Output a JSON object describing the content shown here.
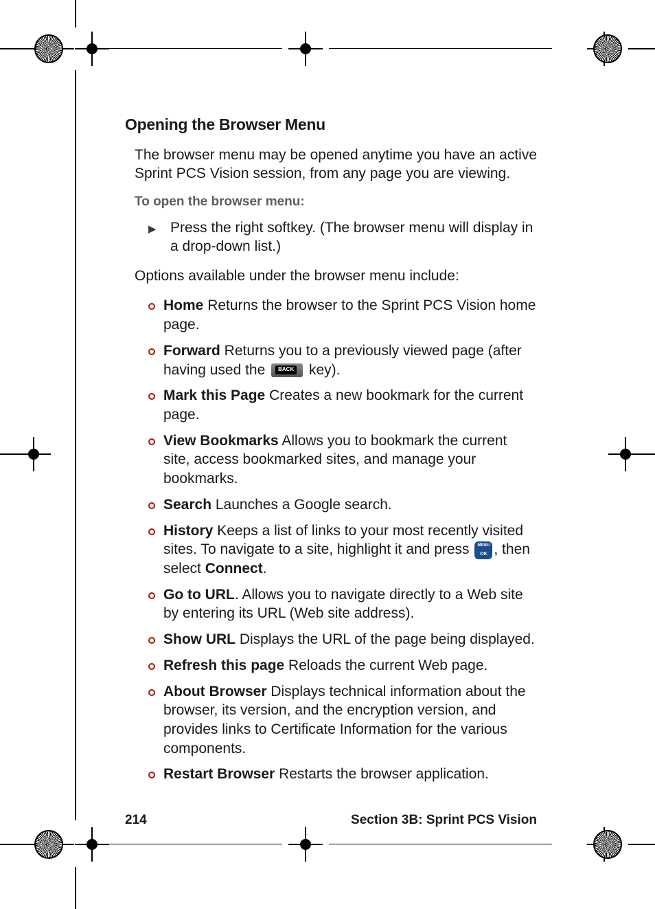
{
  "heading": "Opening the Browser Menu",
  "intro": "The browser menu may be opened anytime you have an active Sprint PCS Vision session, from any page you are viewing.",
  "subhead": "To open the browser menu:",
  "arrow_step": "Press the right softkey. (The browser menu will display in a drop-down list.)",
  "options_lead": "Options available under the browser menu include:",
  "options": [
    {
      "term": "Home",
      "desc": " Returns the browser to the Sprint PCS Vision home page."
    },
    {
      "term": "Forward",
      "desc_pre": " Returns you to a previously viewed page (after having used the ",
      "key": "back",
      "desc_post": " key)."
    },
    {
      "term": "Mark this Page",
      "desc": " Creates a new bookmark for the current page."
    },
    {
      "term": "View Bookmarks",
      "desc": " Allows you to bookmark the current site, access bookmarked sites, and manage your bookmarks."
    },
    {
      "term": "Search",
      "desc": " Launches a Google search."
    },
    {
      "term": "History",
      "desc_pre": " Keeps a list of links to your most recently visited sites. To navigate to a site, highlight it and press ",
      "key": "menu",
      "desc_mid": ", then select ",
      "term2": "Connect",
      "desc_post": "."
    },
    {
      "term": "Go to URL",
      "desc": ". Allows you to navigate directly to a Web site by entering its URL (Web site address)."
    },
    {
      "term": "Show URL",
      "desc": " Displays the URL of the page being displayed."
    },
    {
      "term": "Refresh this page",
      "desc": " Reloads the current Web page."
    },
    {
      "term": "About Browser",
      "desc": " Displays technical information about the browser, its version, and the encryption version, and provides links to Certificate Information for the various components."
    },
    {
      "term": "Restart Browser",
      "desc": " Restarts the browser application."
    }
  ],
  "footer": {
    "page_num": "214",
    "section": "Section 3B: Sprint PCS Vision"
  },
  "colors": {
    "bullet_border": "#9a1f1a",
    "bullet_fill": "#fff7d8",
    "subhead_gray": "#5e5e5e",
    "menu_key": "#1b4d8a"
  }
}
